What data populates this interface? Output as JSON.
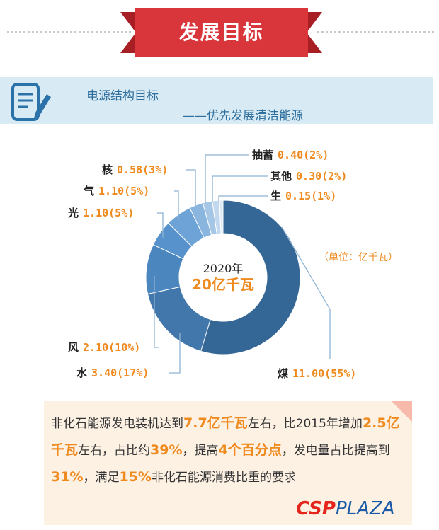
{
  "header": {
    "title": "发展目标"
  },
  "subtitle": {
    "line1": "电源结构目标",
    "line2": "——优先发展清洁能源"
  },
  "center": {
    "year": "2020年",
    "total": "20亿千瓦"
  },
  "unit_note": "（单位：亿千瓦）",
  "chart_data": {
    "type": "pie",
    "donut": true,
    "title": "",
    "slices": [
      {
        "name": "煤",
        "value": 11.0,
        "share": "55%",
        "label": "11.00(55%)",
        "color": "#356796"
      },
      {
        "name": "水",
        "value": 3.4,
        "share": "17%",
        "label": "3.40(17%)",
        "color": "#4277ab"
      },
      {
        "name": "风",
        "value": 2.1,
        "share": "10%",
        "label": "2.10(10%)",
        "color": "#4c86bf"
      },
      {
        "name": "光",
        "value": 1.1,
        "share": "5%",
        "label": "1.10(5%)",
        "color": "#5792cc"
      },
      {
        "name": "气",
        "value": 1.1,
        "share": "5%",
        "label": "1.10(5%)",
        "color": "#6da3d6"
      },
      {
        "name": "核",
        "value": 0.58,
        "share": "3%",
        "label": "0.58(3%)",
        "color": "#8ab5df"
      },
      {
        "name": "抽蓄",
        "value": 0.4,
        "share": "2%",
        "label": "0.40(2%)",
        "color": "#a6c6e6"
      },
      {
        "name": "其他",
        "value": 0.3,
        "share": "2%",
        "label": "0.30(2%)",
        "color": "#c2d8ee"
      },
      {
        "name": "生",
        "value": 0.15,
        "share": "1%",
        "label": "0.15(1%)",
        "color": "#dbe8f5"
      }
    ]
  },
  "note": {
    "p1": "非化石能源发电装机达到",
    "h1": "7.7亿千瓦",
    "p2": "左右，比2015年增加",
    "h2": "2.5亿千瓦",
    "p3": "左右，占比约",
    "h3": "39%",
    "p4": "，提高",
    "h4": "4个百分点",
    "p5": "，发电量占比提高到",
    "h5": "31%",
    "p6": "，满足",
    "h6": "15%",
    "p7": "非化石能源消费比重的要求"
  },
  "logo": {
    "part1": "CSP",
    "part2": "PLAZA"
  },
  "colors": {
    "accent": "#ef8a1f",
    "banner": "#d9363b",
    "primary": "#356796"
  }
}
